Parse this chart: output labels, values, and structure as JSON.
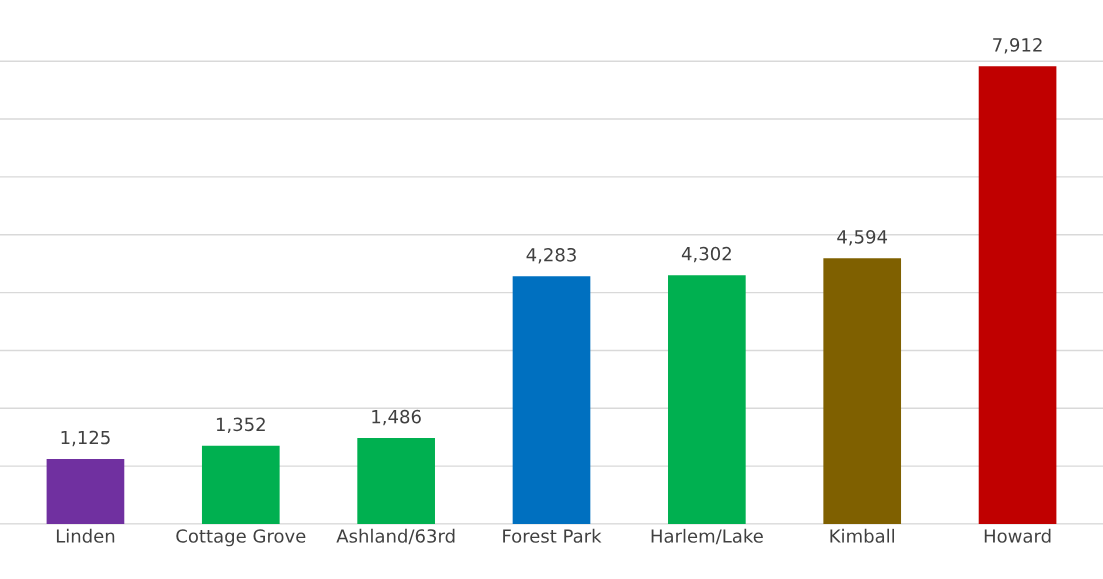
{
  "chart_data": {
    "type": "bar",
    "categories": [
      "Linden",
      "Cottage Grove",
      "Ashland/63rd",
      "Forest Park",
      "Harlem/Lake",
      "Kimball",
      "Howard"
    ],
    "values": [
      1125,
      1352,
      1486,
      4283,
      4302,
      4594,
      7912
    ],
    "colors": [
      "#7030a0",
      "#00b050",
      "#00b050",
      "#0070c0",
      "#00b050",
      "#7f6000",
      "#c00000"
    ],
    "value_labels": [
      "1,125",
      "1,352",
      "1,486",
      "4,283",
      "4,302",
      "4,594",
      "7,912"
    ],
    "grid": "y",
    "legend": false
  }
}
